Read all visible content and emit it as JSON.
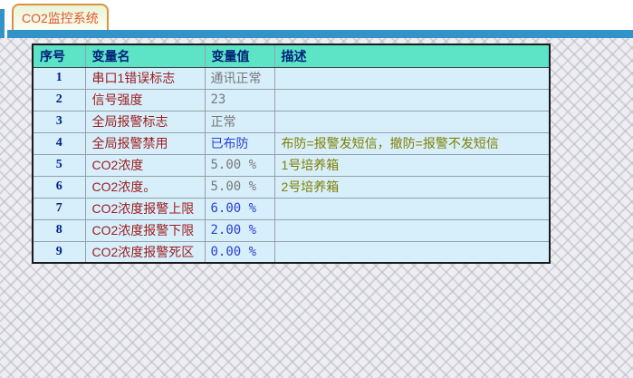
{
  "tab": {
    "title": "CO2监控系统"
  },
  "colors": {
    "bar_blue": "#3392c8",
    "tab_border_orange": "#df8f44",
    "tab_text_orange": "#e2572b",
    "header_teal": "#5de4c6",
    "header_text_navy": "#001f7a",
    "row_bg_lightblue": "#d7effb",
    "index_navy": "#002286",
    "name_dark_red": "#9c1c1c",
    "value_gray": "#787878",
    "value_blue": "#2b3fd4",
    "desc_olive": "#7f7f00",
    "background_pattern_gray": "#eeeef2"
  },
  "table": {
    "headers": [
      "序号",
      "变量名",
      "变量值",
      "描述"
    ],
    "rows": [
      {
        "index": "1",
        "name": "串口1错误标志",
        "value": "通讯正常",
        "value_color": "gray",
        "desc": ""
      },
      {
        "index": "2",
        "name": "信号强度",
        "value": "23",
        "value_color": "gray",
        "desc": ""
      },
      {
        "index": "3",
        "name": "全局报警标志",
        "value": "正常",
        "value_color": "gray",
        "desc": ""
      },
      {
        "index": "4",
        "name": "全局报警禁用",
        "value": "已布防",
        "value_color": "blue",
        "desc": "布防=报警发短信，撤防=报警不发短信"
      },
      {
        "index": "5",
        "name": "CO2浓度",
        "value": "5.00 %",
        "value_color": "gray",
        "desc": "1号培养箱"
      },
      {
        "index": "6",
        "name": "CO2浓度。",
        "value": "5.00 %",
        "value_color": "gray",
        "desc": "2号培养箱"
      },
      {
        "index": "7",
        "name": "CO2浓度报警上限",
        "value": "6.00 %",
        "value_color": "blue",
        "desc": ""
      },
      {
        "index": "8",
        "name": "CO2浓度报警下限",
        "value": "2.00 %",
        "value_color": "blue",
        "desc": ""
      },
      {
        "index": "9",
        "name": "CO2浓度报警死区",
        "value": "0.00 %",
        "value_color": "blue",
        "desc": ""
      }
    ]
  }
}
